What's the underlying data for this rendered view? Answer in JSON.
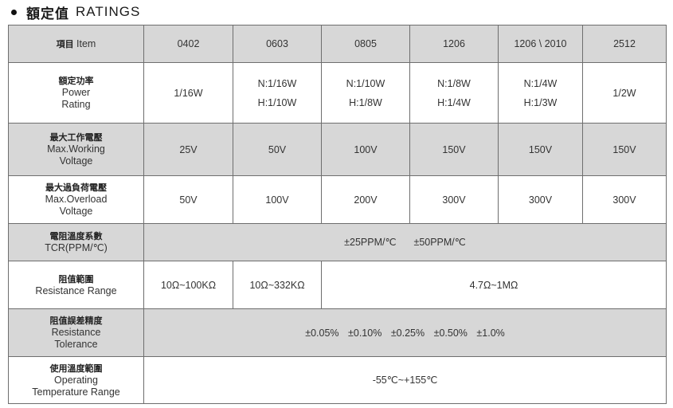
{
  "title": {
    "zh": "額定值",
    "en": "RATINGS"
  },
  "header": {
    "item_zh": "項目",
    "item_en": "Item",
    "sizes": [
      "0402",
      "0603",
      "0805",
      "1206",
      "1206 \\ 2010",
      "2512"
    ]
  },
  "rows": {
    "power": {
      "zh": "額定功率",
      "en1": "Power",
      "en2": "Rating",
      "v0402": "1/16W",
      "v0603_n": "N:1/16W",
      "v0603_h": "H:1/10W",
      "v0805_n": "N:1/10W",
      "v0805_h": "H:1/8W",
      "v1206_n": "N:1/8W",
      "v1206_h": "H:1/4W",
      "v2010_n": "N:1/4W",
      "v2010_h": "H:1/3W",
      "v2512": "1/2W"
    },
    "working_voltage": {
      "zh": "最大工作電壓",
      "en1": "Max.Working",
      "en2": "Voltage",
      "values": [
        "25V",
        "50V",
        "100V",
        "150V",
        "150V",
        "150V"
      ]
    },
    "overload_voltage": {
      "zh": "最大過負荷電壓",
      "en1": "Max.Overload",
      "en2": "Voltage",
      "values": [
        "50V",
        "100V",
        "200V",
        "300V",
        "300V",
        "300V"
      ]
    },
    "tcr": {
      "zh": "電阻溫度系數",
      "en1": "TCR(PPM/℃)",
      "values": [
        "±25PPM/℃",
        "±50PPM/℃"
      ]
    },
    "resistance_range": {
      "zh": "阻值範圍",
      "en1": "Resistance Range",
      "v0402": "10Ω~100KΩ",
      "v0603": "10Ω~332KΩ",
      "rest": "4.7Ω~1MΩ"
    },
    "tolerance": {
      "zh": "阻值誤差精度",
      "en1": "Resistance",
      "en2": "Tolerance",
      "values": [
        "±0.05%",
        "±0.10%",
        "±0.25%",
        "±0.50%",
        "±1.0%"
      ]
    },
    "temperature": {
      "zh": "使用溫度範圍",
      "en1": "Operating",
      "en2": "Temperature Range",
      "value": "-55℃~+155℃"
    }
  }
}
